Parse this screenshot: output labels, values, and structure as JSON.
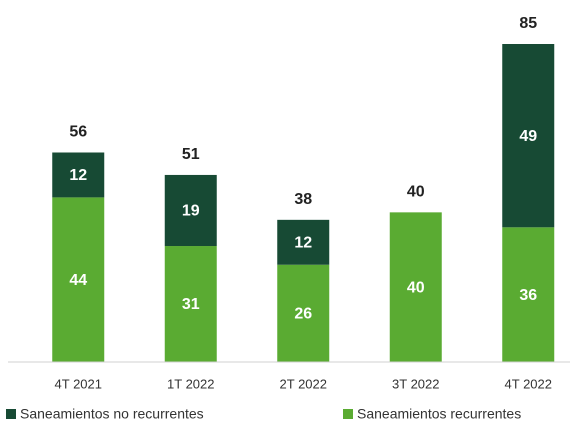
{
  "chart_data": {
    "type": "stacked_bar",
    "categories": [
      "4T 2021",
      "1T 2022",
      "2T 2022",
      "3T 2022",
      "4T 2022"
    ],
    "series": [
      {
        "name": "Saneamientos recurrentes",
        "color": "#5aab32",
        "values": [
          44,
          31,
          26,
          40,
          36
        ]
      },
      {
        "name": "Saneamientos no recurrentes",
        "color": "#174a34",
        "values": [
          12,
          19,
          12,
          null,
          49
        ]
      }
    ],
    "totals": [
      56,
      51,
      38,
      40,
      85
    ],
    "ylim": [
      0,
      85
    ],
    "legend": "bottom"
  }
}
